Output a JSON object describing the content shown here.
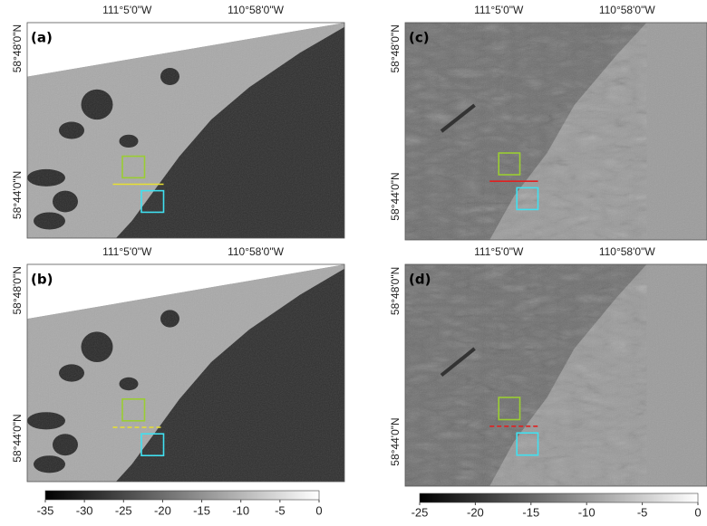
{
  "panels": [
    {
      "label": "(a)",
      "lon_labels": [
        "111°5'0\"W",
        "110°58'0\"W"
      ],
      "lat_labels": [
        "58°48'0\"N",
        "58°44'0\"N"
      ]
    },
    {
      "label": "(b)",
      "lon_labels": [
        "111°5'0\"W",
        "110°58'0\"W"
      ],
      "lat_labels": [
        "58°48'0\"N",
        "58°44'0\"N"
      ]
    },
    {
      "label": "(c)",
      "lon_labels": [
        "111°5'0\"W",
        "110°58'0\"W"
      ],
      "lat_labels": [
        "58°48'0\"N",
        "58°44'0\"N"
      ]
    },
    {
      "label": "(d)",
      "lon_labels": [
        "111°5'0\"W",
        "110°58'0\"W"
      ],
      "lat_labels": [
        "58°48'0\"N",
        "58°44'0\"N"
      ]
    }
  ],
  "colorbars": [
    {
      "lim": [
        -35,
        0
      ],
      "ticks": [
        -35,
        -30,
        -25,
        -20,
        -15,
        -10,
        -5,
        0
      ]
    },
    {
      "lim": [
        -25,
        0
      ],
      "ticks": [
        -25,
        -20,
        -15,
        -10,
        -5,
        0
      ]
    }
  ]
}
